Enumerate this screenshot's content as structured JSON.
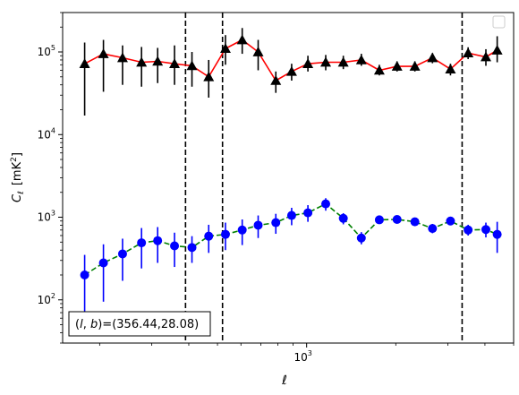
{
  "chart_data": {
    "type": "scatter",
    "title": "",
    "xlabel": "ℓ",
    "ylabel": "C",
    "ylabel_sub": "ℓ",
    "ylabel_unit": "[mK",
    "ylabel_unit_sup": "2",
    "ylabel_unit_close": "]",
    "xscale": "log",
    "yscale": "log",
    "xlim": [
      150,
      5000
    ],
    "ylim": [
      30,
      300000
    ],
    "grid": false,
    "legend": {
      "placement": "top-right",
      "entries": []
    },
    "x_ticks": [
      {
        "value": 1000,
        "base": "10",
        "exp": "3"
      }
    ],
    "y_ticks": [
      {
        "value": 100,
        "base": "10",
        "exp": "2"
      },
      {
        "value": 1000,
        "base": "10",
        "exp": "3"
      },
      {
        "value": 10000,
        "base": "10",
        "exp": "4"
      },
      {
        "value": 100000,
        "base": "10",
        "exp": "5"
      }
    ],
    "vlines": [
      390,
      520,
      3350
    ],
    "annotation": "(l, b)=(356.44,28.08)",
    "annotation_prefix": "(",
    "annotation_l": "l",
    "annotation_comma": ", ",
    "annotation_b": "b",
    "annotation_rest": ")=(356.44,28.08)",
    "series": [
      {
        "marker": "triangle",
        "marker_color": "#000000",
        "line_color": "#ff0000",
        "line_style": "solid",
        "points": [
          {
            "x": 178,
            "y": 72000,
            "lo": 17000,
            "hi": 130000
          },
          {
            "x": 206,
            "y": 95000,
            "lo": 33000,
            "hi": 140000
          },
          {
            "x": 239,
            "y": 85000,
            "lo": 40000,
            "hi": 120000
          },
          {
            "x": 277,
            "y": 75000,
            "lo": 38000,
            "hi": 115000
          },
          {
            "x": 314,
            "y": 77000,
            "lo": 42000,
            "hi": 112000
          },
          {
            "x": 358,
            "y": 72000,
            "lo": 40000,
            "hi": 120000
          },
          {
            "x": 410,
            "y": 68000,
            "lo": 38000,
            "hi": 100000
          },
          {
            "x": 467,
            "y": 50000,
            "lo": 28000,
            "hi": 80000
          },
          {
            "x": 532,
            "y": 110000,
            "lo": 70000,
            "hi": 160000
          },
          {
            "x": 606,
            "y": 140000,
            "lo": 95000,
            "hi": 195000
          },
          {
            "x": 686,
            "y": 100000,
            "lo": 60000,
            "hi": 140000
          },
          {
            "x": 787,
            "y": 45000,
            "lo": 32000,
            "hi": 58000
          },
          {
            "x": 890,
            "y": 58000,
            "lo": 45000,
            "hi": 72000
          },
          {
            "x": 1010,
            "y": 72000,
            "lo": 58000,
            "hi": 90000
          },
          {
            "x": 1160,
            "y": 75000,
            "lo": 60000,
            "hi": 92000
          },
          {
            "x": 1330,
            "y": 75000,
            "lo": 62000,
            "hi": 90000
          },
          {
            "x": 1530,
            "y": 80000,
            "lo": 68000,
            "hi": 95000
          },
          {
            "x": 1760,
            "y": 60000,
            "lo": 52000,
            "hi": 70000
          },
          {
            "x": 2020,
            "y": 67000,
            "lo": 58000,
            "hi": 77000
          },
          {
            "x": 2320,
            "y": 67000,
            "lo": 58000,
            "hi": 77000
          },
          {
            "x": 2660,
            "y": 85000,
            "lo": 73000,
            "hi": 97000
          },
          {
            "x": 3060,
            "y": 62000,
            "lo": 52000,
            "hi": 72000
          },
          {
            "x": 3510,
            "y": 97000,
            "lo": 82000,
            "hi": 114000
          },
          {
            "x": 4030,
            "y": 87000,
            "lo": 68000,
            "hi": 108000
          },
          {
            "x": 4400,
            "y": 105000,
            "lo": 75000,
            "hi": 155000
          }
        ]
      },
      {
        "marker": "circle",
        "marker_color": "#0000ff",
        "line_color": "#008000",
        "line_style": "dashed",
        "points": [
          {
            "x": 178,
            "y": 200,
            "lo": 60,
            "hi": 350
          },
          {
            "x": 206,
            "y": 280,
            "lo": 95,
            "hi": 470
          },
          {
            "x": 239,
            "y": 360,
            "lo": 170,
            "hi": 550
          },
          {
            "x": 277,
            "y": 490,
            "lo": 240,
            "hi": 740
          },
          {
            "x": 314,
            "y": 520,
            "lo": 280,
            "hi": 760
          },
          {
            "x": 358,
            "y": 450,
            "lo": 250,
            "hi": 650
          },
          {
            "x": 410,
            "y": 430,
            "lo": 280,
            "hi": 590
          },
          {
            "x": 467,
            "y": 590,
            "lo": 370,
            "hi": 810
          },
          {
            "x": 532,
            "y": 620,
            "lo": 400,
            "hi": 860
          },
          {
            "x": 606,
            "y": 700,
            "lo": 460,
            "hi": 940
          },
          {
            "x": 686,
            "y": 800,
            "lo": 560,
            "hi": 1050
          },
          {
            "x": 787,
            "y": 860,
            "lo": 630,
            "hi": 1100
          },
          {
            "x": 890,
            "y": 1050,
            "lo": 800,
            "hi": 1300
          },
          {
            "x": 1010,
            "y": 1130,
            "lo": 880,
            "hi": 1400
          },
          {
            "x": 1160,
            "y": 1450,
            "lo": 1200,
            "hi": 1700
          },
          {
            "x": 1330,
            "y": 970,
            "lo": 820,
            "hi": 1120
          },
          {
            "x": 1530,
            "y": 560,
            "lo": 470,
            "hi": 660
          },
          {
            "x": 1760,
            "y": 930,
            "lo": 830,
            "hi": 1030
          },
          {
            "x": 2020,
            "y": 940,
            "lo": 850,
            "hi": 1030
          },
          {
            "x": 2320,
            "y": 880,
            "lo": 790,
            "hi": 980
          },
          {
            "x": 2660,
            "y": 730,
            "lo": 640,
            "hi": 830
          },
          {
            "x": 3060,
            "y": 900,
            "lo": 800,
            "hi": 1000
          },
          {
            "x": 3510,
            "y": 700,
            "lo": 600,
            "hi": 810
          },
          {
            "x": 4030,
            "y": 710,
            "lo": 570,
            "hi": 860
          },
          {
            "x": 4400,
            "y": 620,
            "lo": 370,
            "hi": 880
          }
        ]
      }
    ]
  }
}
